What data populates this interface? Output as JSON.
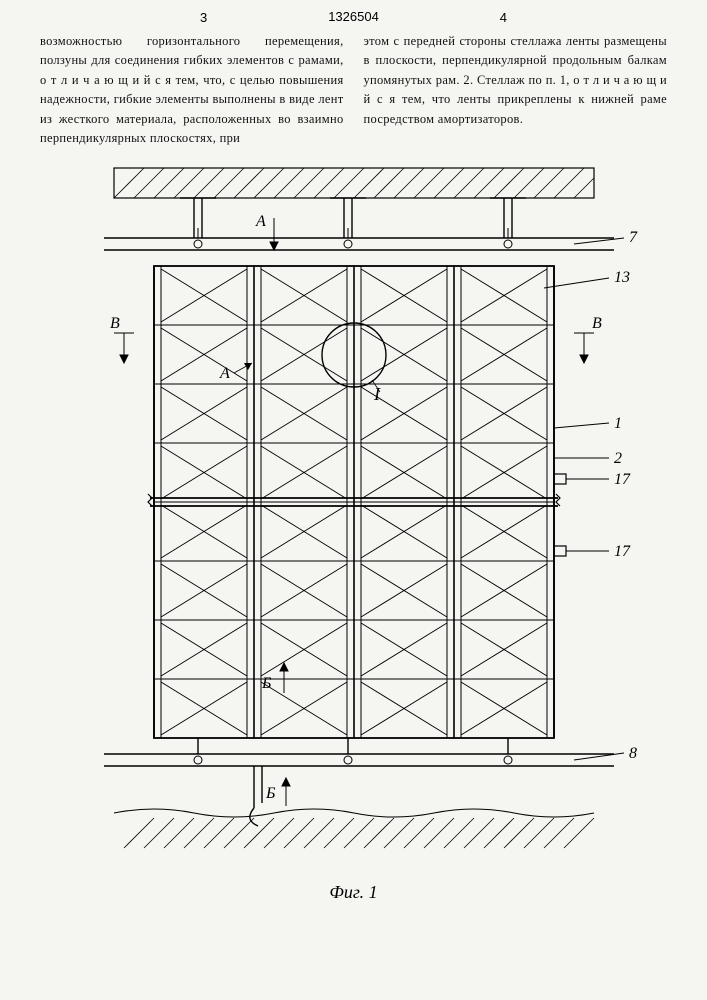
{
  "header": {
    "page_left": "3",
    "page_right": "4",
    "patent_number": "1326504"
  },
  "text": {
    "col1": "возможностью горизонтального перемещения, ползуны для соединения гибких элементов с рамами, о т л и ч а ю щ и й с я тем, что, с целью повышения надежности, гибкие элементы выполнены в виде лент из жесткого материала, расположенных во взаимно перпендикулярных плоскостях, при",
    "col2": "этом с передней стороны стеллажа ленты размещены в плоскости, перпендикулярной продольным балкам упомянутых рам.\n2. Стеллаж по п. 1, о т л и ч а ю щ и й с я тем, что ленты прикреплены к нижней раме посредством амортизаторов."
  },
  "figure": {
    "caption": "Фиг. 1",
    "labels": {
      "A_top": "А",
      "A_mid": "А",
      "B_left": "В",
      "B_right": "В",
      "B_bottom_left": "Б",
      "B_bottom_right": "Б",
      "roman_I": "I"
    },
    "callouts": {
      "n7": "7",
      "n13": "13",
      "n1": "1",
      "n2": "2",
      "n17a": "17",
      "n17b": "17",
      "n8": "8"
    },
    "grid": {
      "cols": 4,
      "rows": 8
    },
    "colors": {
      "stroke": "#000000",
      "fill": "none",
      "page_bg": "#f5f5f2"
    },
    "line_widths": {
      "outer": 1.8,
      "grid": 1.1,
      "diag": 1.0,
      "leader": 0.9
    }
  }
}
